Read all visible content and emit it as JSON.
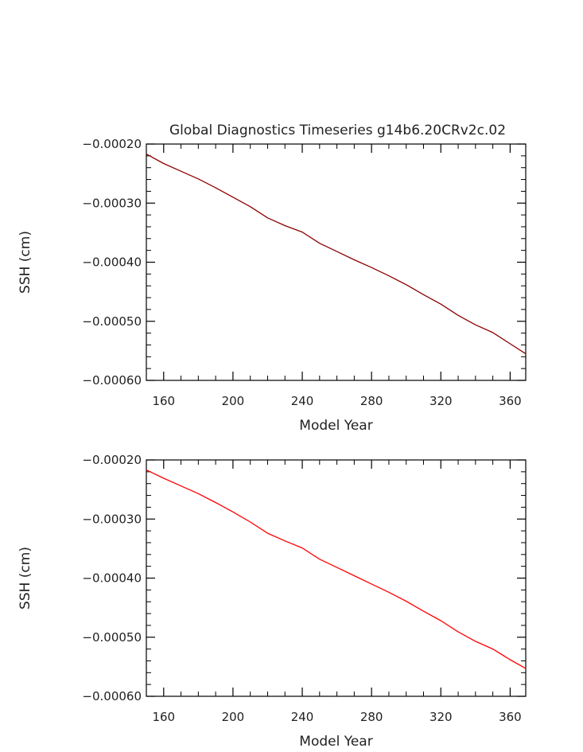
{
  "chart_data": [
    {
      "type": "line",
      "title": "Global Diagnostics Timeseries g14b6.20CRv2c.02",
      "xlabel": "Model Year",
      "ylabel": "SSH (cm)",
      "xlim": [
        150,
        369
      ],
      "ylim": [
        -0.0006,
        -0.0002
      ],
      "x_ticks": [
        160,
        200,
        240,
        280,
        320,
        360
      ],
      "x_tick_labels": [
        "160",
        "200",
        "240",
        "280",
        "320",
        "360"
      ],
      "y_ticks": [
        -0.0002,
        -0.0003,
        -0.0004,
        -0.0005,
        -0.0006
      ],
      "y_tick_labels": [
        "−0.00020",
        "−0.00030",
        "−0.00040",
        "−0.00050",
        "−0.00060"
      ],
      "line_color": "#8b0000",
      "series": [
        {
          "x": [
            150,
            160,
            170,
            180,
            190,
            200,
            210,
            220,
            230,
            240,
            250,
            260,
            270,
            280,
            290,
            300,
            310,
            320,
            330,
            340,
            350,
            360,
            369
          ],
          "y": [
            -0.000217,
            -0.000233,
            -0.000246,
            -0.000259,
            -0.000274,
            -0.00029,
            -0.000306,
            -0.000325,
            -0.000338,
            -0.000349,
            -0.000368,
            -0.000382,
            -0.000396,
            -0.000409,
            -0.000423,
            -0.000438,
            -0.000455,
            -0.000471,
            -0.00049,
            -0.000506,
            -0.000519,
            -0.000538,
            -0.000555
          ]
        }
      ]
    },
    {
      "type": "line",
      "title": "",
      "xlabel": "Model Year",
      "ylabel": "SSH (cm)",
      "xlim": [
        150,
        369
      ],
      "ylim": [
        -0.0006,
        -0.0002
      ],
      "x_ticks": [
        160,
        200,
        240,
        280,
        320,
        360
      ],
      "x_tick_labels": [
        "160",
        "200",
        "240",
        "280",
        "320",
        "360"
      ],
      "y_ticks": [
        -0.0002,
        -0.0003,
        -0.0004,
        -0.0005,
        -0.0006
      ],
      "y_tick_labels": [
        "−0.00020",
        "−0.00030",
        "−0.00040",
        "−0.00050",
        "−0.00060"
      ],
      "line_color": "#ff0000",
      "series": [
        {
          "x": [
            150,
            160,
            170,
            180,
            190,
            200,
            210,
            220,
            230,
            240,
            250,
            260,
            270,
            280,
            290,
            300,
            310,
            320,
            330,
            340,
            350,
            360,
            369
          ],
          "y": [
            -0.000217,
            -0.000231,
            -0.000244,
            -0.000257,
            -0.000272,
            -0.000288,
            -0.000305,
            -0.000324,
            -0.000337,
            -0.000349,
            -0.000368,
            -0.000382,
            -0.000396,
            -0.00041,
            -0.000424,
            -0.000439,
            -0.000456,
            -0.000472,
            -0.000491,
            -0.000507,
            -0.00052,
            -0.000538,
            -0.000553
          ]
        }
      ]
    }
  ]
}
